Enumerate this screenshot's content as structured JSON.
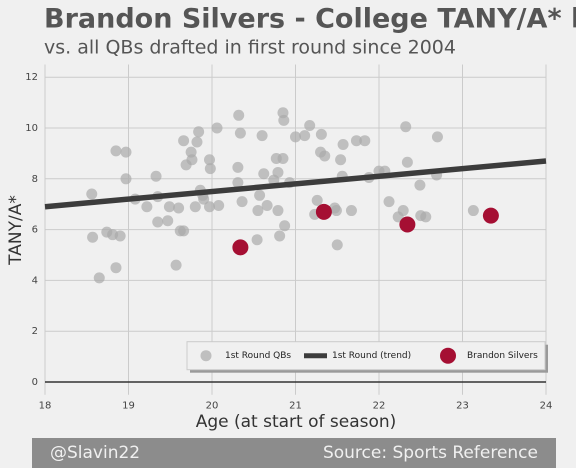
{
  "chart_data": {
    "type": "scatter",
    "title": "Brandon Silvers - College TANY/A* by Age",
    "subtitle": "vs. all QBs drafted in first round since 2004",
    "x_label": "Age (at start of season)",
    "y_label": "TANY/A*",
    "credit": "@Slavin22",
    "source": "Source: Sports Reference",
    "xlim": [
      18,
      24
    ],
    "ylim": [
      -0.5,
      12.5
    ],
    "xticks": [
      18,
      19,
      20,
      21,
      22,
      23,
      24
    ],
    "yticks": [
      0,
      2,
      4,
      6,
      8,
      10,
      12
    ],
    "grid": true,
    "legend": "lower right",
    "series": [
      {
        "name": "1st Round QBs",
        "color": "#aaaaaa",
        "x": [
          18.56,
          18.57,
          18.65,
          18.74,
          18.81,
          18.85,
          18.85,
          18.9,
          18.97,
          18.97,
          19.08,
          19.22,
          19.33,
          19.35,
          19.35,
          19.47,
          19.49,
          19.57,
          19.6,
          19.62,
          19.66,
          19.66,
          19.69,
          19.75,
          19.76,
          19.8,
          19.82,
          19.84,
          19.86,
          19.89,
          19.9,
          19.97,
          19.97,
          19.98,
          20.06,
          20.08,
          20.31,
          20.31,
          20.32,
          20.34,
          20.36,
          20.54,
          20.55,
          20.57,
          20.6,
          20.62,
          20.66,
          20.74,
          20.77,
          20.79,
          20.79,
          20.85,
          20.85,
          20.87,
          20.86,
          20.81,
          20.93,
          21.0,
          21.11,
          21.17,
          21.23,
          21.26,
          21.3,
          21.31,
          21.35,
          21.49,
          21.47,
          21.5,
          21.54,
          21.56,
          21.57,
          21.67,
          21.73,
          21.83,
          21.88,
          22.0,
          22.07,
          22.12,
          22.23,
          22.29,
          22.32,
          22.34,
          22.49,
          22.5,
          22.56,
          22.69,
          22.7,
          23.13
        ],
        "values": [
          7.4,
          5.7,
          4.1,
          5.9,
          5.8,
          4.5,
          9.1,
          5.75,
          9.05,
          8.0,
          7.2,
          6.9,
          8.1,
          7.3,
          6.3,
          6.35,
          6.9,
          4.6,
          6.85,
          5.95,
          5.95,
          9.5,
          8.55,
          9.05,
          8.75,
          6.9,
          9.45,
          9.85,
          7.55,
          7.35,
          7.2,
          6.9,
          8.75,
          8.4,
          10.0,
          6.95,
          8.45,
          7.85,
          10.5,
          9.8,
          7.1,
          5.6,
          6.75,
          7.35,
          9.7,
          8.2,
          6.95,
          7.95,
          8.8,
          6.75,
          8.25,
          8.8,
          10.6,
          6.15,
          10.3,
          5.75,
          7.85,
          9.65,
          9.7,
          10.1,
          6.6,
          7.15,
          9.05,
          9.75,
          8.9,
          6.75,
          6.85,
          5.4,
          8.75,
          8.1,
          9.35,
          6.75,
          9.5,
          9.5,
          8.05,
          8.3,
          8.3,
          7.1,
          6.5,
          6.75,
          10.05,
          8.65,
          7.75,
          6.55,
          6.5,
          8.15,
          9.65,
          6.75
        ]
      },
      {
        "name": "1st Round (trend)",
        "type": "line",
        "color": "#3c3c3c",
        "x": [
          18,
          24
        ],
        "values": [
          6.9,
          8.7
        ]
      },
      {
        "name": "Brandon Silvers",
        "color": "#a50f33",
        "x": [
          20.34,
          21.34,
          22.34,
          23.34
        ],
        "values": [
          5.3,
          6.7,
          6.2,
          6.55
        ]
      }
    ]
  }
}
